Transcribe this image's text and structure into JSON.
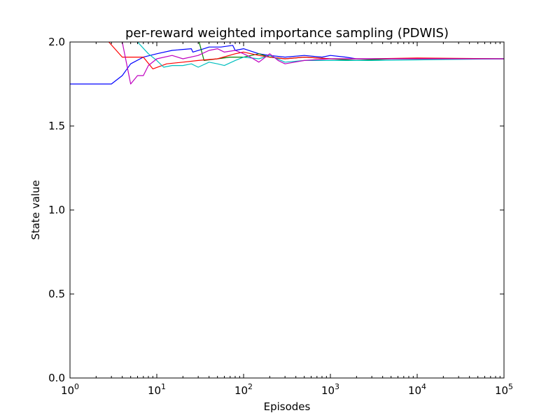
{
  "chart_data": {
    "type": "line",
    "title": "per-reward weighted importance sampling (PDWIS)",
    "xlabel": "Episodes",
    "ylabel": "State value",
    "xscale": "log",
    "xlim": [
      1,
      100000
    ],
    "ylim": [
      0.0,
      2.0
    ],
    "grid": false,
    "legend": "none",
    "x_ticks": [
      {
        "base": "10",
        "exp": "0"
      },
      {
        "base": "10",
        "exp": "1"
      },
      {
        "base": "10",
        "exp": "2"
      },
      {
        "base": "10",
        "exp": "3"
      },
      {
        "base": "10",
        "exp": "4"
      },
      {
        "base": "10",
        "exp": "5"
      }
    ],
    "y_ticks": [
      "0.0",
      "0.5",
      "1.0",
      "1.5",
      "2.0"
    ],
    "series": [
      {
        "color": "#0000ff",
        "x": [
          1,
          3,
          4,
          5,
          7,
          10,
          15,
          25,
          26,
          35,
          40,
          55,
          75,
          80,
          100,
          150,
          200,
          300,
          500,
          800,
          1000,
          1500,
          2000,
          5000,
          100000
        ],
        "y": [
          1.75,
          1.75,
          1.8,
          1.87,
          1.91,
          1.93,
          1.95,
          1.96,
          1.94,
          1.96,
          1.97,
          1.97,
          1.98,
          1.95,
          1.96,
          1.93,
          1.92,
          1.91,
          1.92,
          1.91,
          1.92,
          1.91,
          1.9,
          1.9,
          1.9
        ]
      },
      {
        "color": "#008000",
        "x": [
          30,
          33,
          35,
          50,
          70,
          100,
          150,
          200,
          300,
          500,
          1000,
          2000,
          5000,
          100000
        ],
        "y": [
          2.02,
          1.94,
          1.89,
          1.9,
          1.91,
          1.91,
          1.93,
          1.91,
          1.9,
          1.91,
          1.9,
          1.89,
          1.9,
          1.9
        ]
      },
      {
        "color": "#ff0000",
        "x": [
          2.8,
          4,
          7,
          9,
          13,
          20,
          30,
          50,
          80,
          100,
          150,
          200,
          300,
          500,
          1000,
          3000,
          10000,
          100000
        ],
        "y": [
          2.0,
          1.91,
          1.91,
          1.84,
          1.87,
          1.88,
          1.89,
          1.9,
          1.93,
          1.94,
          1.92,
          1.91,
          1.9,
          1.91,
          1.9,
          1.9,
          1.905,
          1.9
        ]
      },
      {
        "color": "#00bfbf",
        "x": [
          6,
          8,
          10,
          12,
          15,
          20,
          25,
          30,
          40,
          50,
          60,
          80,
          100,
          150,
          200,
          300,
          500,
          1000,
          3000,
          100000
        ],
        "y": [
          2.0,
          1.93,
          1.89,
          1.85,
          1.86,
          1.86,
          1.87,
          1.85,
          1.88,
          1.87,
          1.86,
          1.89,
          1.91,
          1.9,
          1.92,
          1.88,
          1.89,
          1.89,
          1.89,
          1.9
        ]
      },
      {
        "color": "#bf00bf",
        "x": [
          4,
          5,
          6,
          7,
          8,
          10,
          15,
          20,
          30,
          40,
          50,
          60,
          80,
          100,
          120,
          150,
          200,
          250,
          300,
          500,
          1000,
          10000,
          100000
        ],
        "y": [
          2.0,
          1.75,
          1.8,
          1.8,
          1.86,
          1.9,
          1.92,
          1.9,
          1.92,
          1.95,
          1.96,
          1.94,
          1.95,
          1.93,
          1.91,
          1.88,
          1.93,
          1.89,
          1.87,
          1.89,
          1.9,
          1.9,
          1.9
        ]
      }
    ]
  }
}
